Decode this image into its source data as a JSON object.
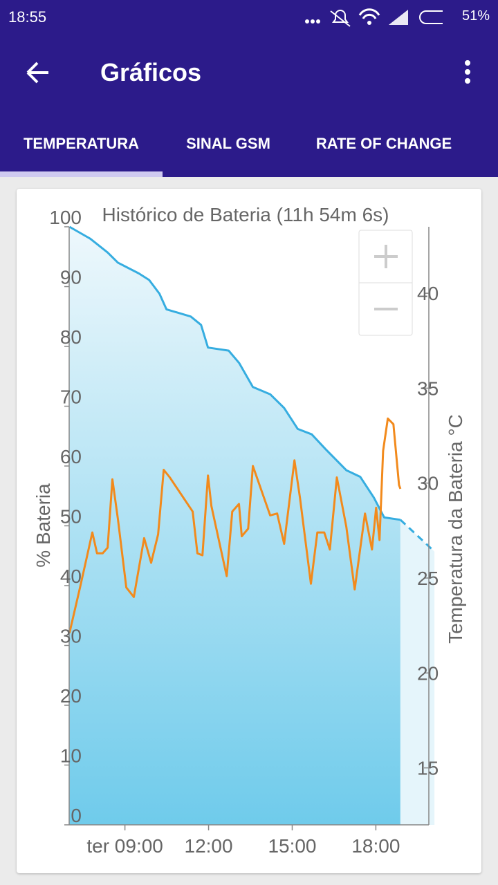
{
  "status_bar": {
    "time": "18:55",
    "battery": "51%"
  },
  "app_bar": {
    "title": "Gráficos"
  },
  "tabs": [
    {
      "label": "TEMPERATURA",
      "selected": true
    },
    {
      "label": "SINAL GSM",
      "selected": false
    },
    {
      "label": "RATE OF CHANGE",
      "selected": false
    }
  ],
  "chart_data": {
    "type": "line",
    "title": "Histórico de Bateria (11h 54m 6s)",
    "ylabel": "% Bateria",
    "y2label": "Temperatura da Bateria °C",
    "xlim": [
      7,
      19.9
    ],
    "xticks": [
      {
        "value": 9,
        "label": "ter 09:00"
      },
      {
        "value": 12,
        "label": "12:00"
      },
      {
        "value": 15,
        "label": "15:00"
      },
      {
        "value": 18,
        "label": "18:00"
      }
    ],
    "ylim": [
      0,
      100
    ],
    "yticks": [
      0,
      10,
      20,
      30,
      40,
      50,
      60,
      70,
      80,
      90,
      100
    ],
    "y2lim": [
      12,
      43.5
    ],
    "y2ticks": [
      15,
      20,
      25,
      30,
      35,
      40
    ],
    "grid": false,
    "series": [
      {
        "color": "#36ade0",
        "area": true,
        "dashed": false,
        "axis": "y",
        "x": [
          7.01,
          7.76,
          8.38,
          8.75,
          9.5,
          9.87,
          10.24,
          10.49,
          11.36,
          11.73,
          11.98,
          12.72,
          13.1,
          13.59,
          14.21,
          14.71,
          15.2,
          15.7,
          16.2,
          16.94,
          17.44,
          17.93,
          18.3,
          18.88
        ],
        "values": [
          100,
          98,
          95.7,
          94,
          92.2,
          91.1,
          88.8,
          86.2,
          85,
          83.6,
          79.8,
          79.3,
          77.2,
          73.2,
          72,
          69.7,
          66.2,
          65.3,
          62.8,
          59.3,
          58.2,
          54.7,
          51.4,
          51
        ]
      },
      {
        "color": "#36ade0",
        "area": true,
        "dashed": true,
        "axis": "y",
        "x": [
          18.88,
          20.1
        ],
        "values": [
          51,
          45.7
        ]
      },
      {
        "color": "#f28a1c",
        "area": false,
        "dashed": false,
        "axis": "y2",
        "x": [
          7.01,
          7.39,
          7.83,
          8.0,
          8.2,
          8.38,
          8.55,
          8.75,
          9.05,
          9.32,
          9.69,
          9.94,
          10.19,
          10.39,
          10.61,
          11.43,
          11.6,
          11.78,
          11.98,
          12.1,
          12.65,
          12.85,
          13.09,
          13.19,
          13.42,
          13.59,
          14.21,
          14.46,
          14.71,
          15.08,
          15.28,
          15.67,
          15.9,
          16.15,
          16.35,
          16.6,
          16.94,
          17.24,
          17.61,
          17.86,
          18.01,
          18.13,
          18.26,
          18.43,
          18.63,
          18.83,
          18.88
        ],
        "values": [
          22.1,
          24.5,
          27.4,
          26.3,
          26.3,
          26.6,
          30.2,
          28.1,
          24.5,
          24.0,
          27.1,
          25.8,
          27.3,
          30.7,
          30.3,
          28.5,
          26.3,
          26.2,
          30.4,
          28.8,
          25.1,
          28.5,
          28.9,
          27.2,
          27.6,
          30.9,
          28.3,
          28.4,
          26.8,
          31.2,
          29.2,
          24.7,
          27.4,
          27.4,
          26.5,
          30.3,
          27.7,
          24.4,
          28.4,
          26.5,
          28.7,
          27.0,
          31.7,
          33.4,
          33.1,
          29.9,
          29.7
        ]
      }
    ]
  }
}
